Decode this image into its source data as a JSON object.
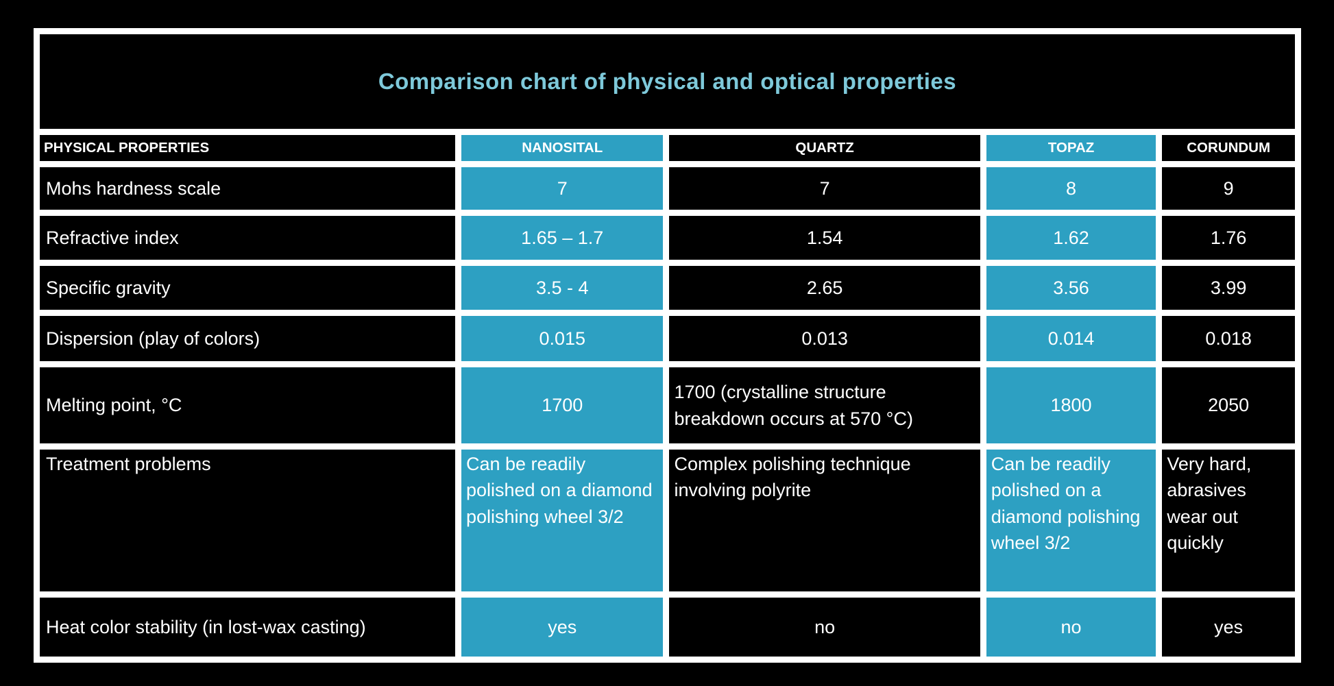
{
  "colors": {
    "accent_blue": "#2da0c2",
    "title_text": "#7ec9da",
    "cell_background": "#000000",
    "grid_lines": "#ffffff"
  },
  "chart_data": {
    "type": "table",
    "title": "Comparison chart of physical and optical properties",
    "columns": [
      "PHYSICAL PROPERTIES",
      "NANOSITAL",
      "QUARTZ",
      "TOPAZ",
      "CORUNDUM"
    ],
    "highlighted_columns": [
      "NANOSITAL",
      "TOPAZ"
    ],
    "legend_position": "none",
    "grid": "white gridlines on black cells",
    "rows": [
      {
        "label": "Mohs hardness scale",
        "values": [
          "7",
          "7",
          "8",
          "9"
        ]
      },
      {
        "label": "Refractive index",
        "values": [
          "1.65 – 1.7",
          "1.54",
          "1.62",
          "1.76"
        ]
      },
      {
        "label": "Specific gravity",
        "values": [
          "3.5 - 4",
          "2.65",
          "3.56",
          "3.99"
        ]
      },
      {
        "label": "Dispersion (play of colors)",
        "values": [
          "0.015",
          "0.013",
          "0.014",
          "0.018"
        ]
      },
      {
        "label": "Melting point, °C",
        "values": [
          "1700",
          "1700 (crystalline structure breakdown occurs at 570 °C)",
          "1800",
          "2050"
        ]
      },
      {
        "label": "Treatment problems",
        "values": [
          "Can be readily polished on a diamond polishing wheel 3/2",
          "Complex polishing technique involving polyrite",
          "Can be readily polished on a diamond polishing wheel 3/2",
          "Very hard, abrasives wear out quickly"
        ]
      },
      {
        "label": "Heat color stability (in lost-wax casting)",
        "values": [
          "yes",
          "no",
          "no",
          "yes"
        ]
      }
    ]
  }
}
